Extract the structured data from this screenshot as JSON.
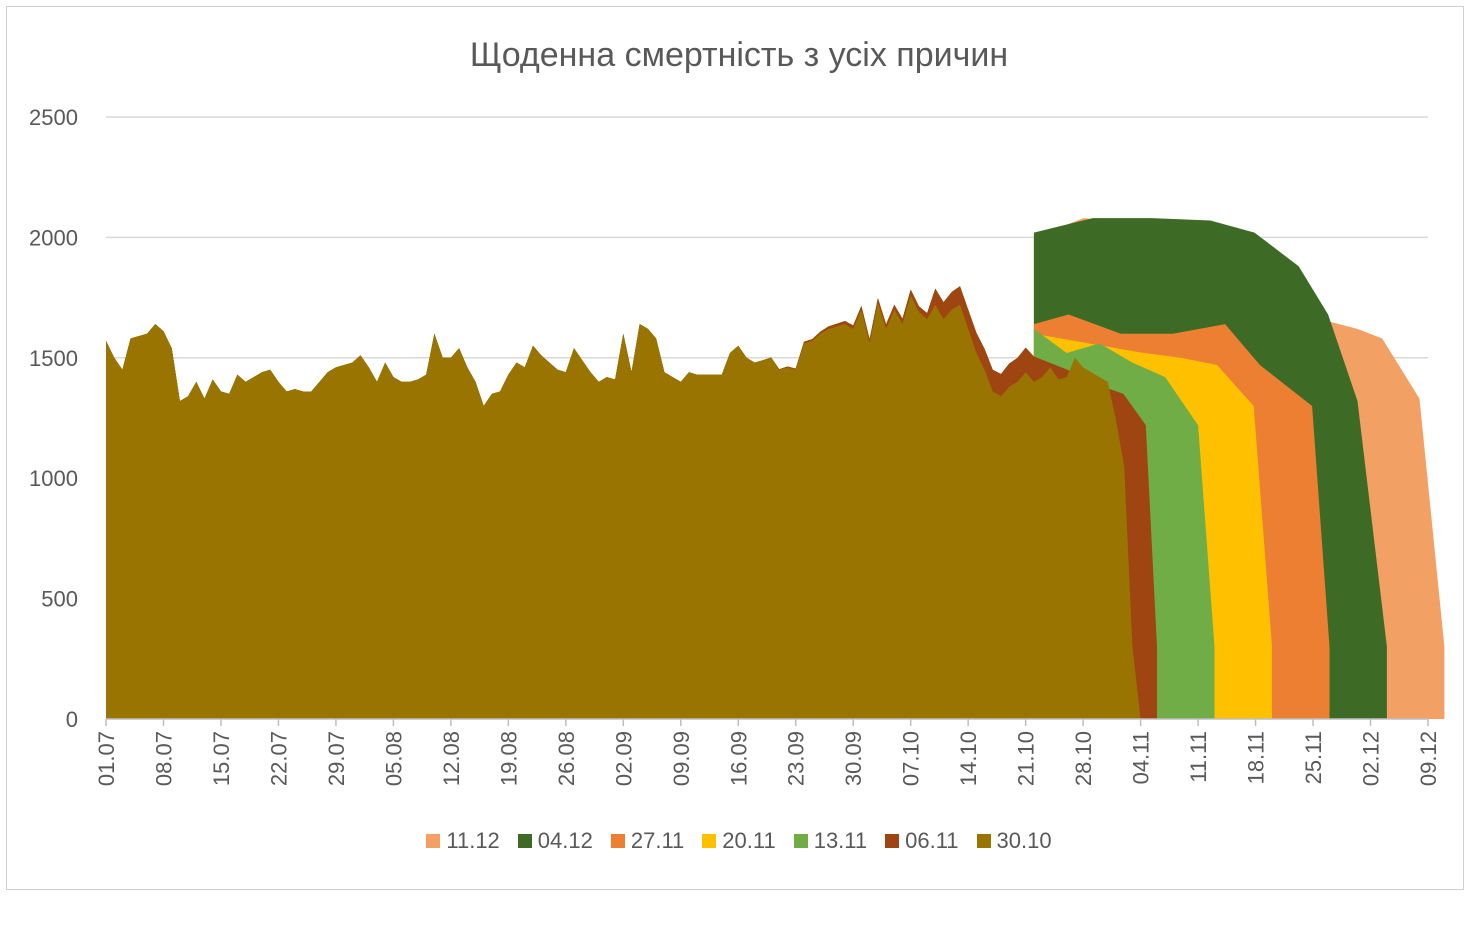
{
  "chart_data": {
    "type": "area",
    "title": "Щоденна смертність з усіх причин",
    "xlabel": "",
    "ylabel": "",
    "ylim": [
      0,
      2500
    ],
    "yticks": [
      0,
      500,
      1000,
      1500,
      2000,
      2500
    ],
    "x_start": "01.07",
    "x_end": "09.12",
    "x_tick_labels": [
      "01.07",
      "08.07",
      "15.07",
      "22.07",
      "29.07",
      "05.08",
      "12.08",
      "19.08",
      "26.08",
      "02.09",
      "09.09",
      "16.09",
      "23.09",
      "30.09",
      "07.10",
      "14.10",
      "21.10",
      "28.10",
      "04.11",
      "11.11",
      "18.11",
      "25.11",
      "02.12",
      "09.12"
    ],
    "grid": true,
    "legend_position": "bottom",
    "series": [
      {
        "name": "11.12",
        "color": "#F2A064",
        "end": "09.12",
        "tail": [
          [
            0,
            2000
          ],
          [
            4,
            2080
          ],
          [
            8,
            2060
          ],
          [
            12,
            2060
          ],
          [
            16,
            1990
          ],
          [
            19,
            1740
          ],
          [
            23,
            1660
          ],
          [
            26,
            1620
          ],
          [
            28,
            1580
          ],
          [
            31,
            1330
          ],
          [
            33,
            300
          ]
        ]
      },
      {
        "name": "04.12",
        "color": "#3D6B26",
        "end": "02.12",
        "tail": [
          [
            0,
            2020
          ],
          [
            4,
            2080
          ],
          [
            8,
            2080
          ],
          [
            12,
            2070
          ],
          [
            15,
            2020
          ],
          [
            18,
            1880
          ],
          [
            20,
            1680
          ],
          [
            22,
            1320
          ],
          [
            24,
            300
          ]
        ]
      },
      {
        "name": "27.11",
        "color": "#EC7F32",
        "end": "25.11",
        "tail": [
          [
            0,
            1640
          ],
          [
            2,
            1680
          ],
          [
            5,
            1600
          ],
          [
            8,
            1600
          ],
          [
            11,
            1640
          ],
          [
            13,
            1470
          ],
          [
            16,
            1300
          ],
          [
            17,
            300
          ]
        ]
      },
      {
        "name": "20.11",
        "color": "#FFC000",
        "end": "18.11",
        "tail": [
          [
            0,
            1600
          ],
          [
            3,
            1560
          ],
          [
            6,
            1520
          ],
          [
            8,
            1500
          ],
          [
            10,
            1470
          ],
          [
            12,
            1300
          ],
          [
            13,
            300
          ]
        ]
      },
      {
        "name": "13.11",
        "color": "#70AD47",
        "end": "11.11",
        "tail": [
          [
            0,
            1620
          ],
          [
            2,
            1520
          ],
          [
            4,
            1560
          ],
          [
            6,
            1480
          ],
          [
            8,
            1420
          ],
          [
            10,
            1220
          ],
          [
            11,
            300
          ]
        ]
      },
      {
        "name": "06.11",
        "color": "#9E4511",
        "end": "04.11",
        "tail": [
          [
            0,
            1500
          ],
          [
            3,
            1450
          ],
          [
            5,
            1400
          ],
          [
            8,
            1350
          ],
          [
            10,
            1220
          ],
          [
            11,
            300
          ]
        ]
      },
      {
        "name": "30.10",
        "color": "#9A7400",
        "end": "28.10",
        "values": [
          1570,
          1500,
          1450,
          1580,
          1590,
          1600,
          1640,
          1610,
          1540,
          1320,
          1340,
          1400,
          1330,
          1410,
          1360,
          1350,
          1430,
          1400,
          1420,
          1440,
          1450,
          1400,
          1360,
          1370,
          1360,
          1360,
          1400,
          1440,
          1460,
          1470,
          1480,
          1510,
          1460,
          1400,
          1480,
          1420,
          1400,
          1400,
          1410,
          1430,
          1600,
          1500,
          1500,
          1540,
          1460,
          1400,
          1300,
          1350,
          1360,
          1430,
          1480,
          1460,
          1550,
          1510,
          1480,
          1450,
          1440,
          1540,
          1490,
          1440,
          1400,
          1420,
          1410,
          1600,
          1440,
          1640,
          1620,
          1580,
          1440,
          1420,
          1400,
          1440,
          1430,
          1430,
          1430,
          1430,
          1520,
          1550,
          1500,
          1480,
          1490,
          1500,
          1450,
          1460,
          1450,
          1560,
          1570,
          1600,
          1620,
          1630,
          1640,
          1620,
          1700,
          1560,
          1730,
          1620,
          1700,
          1640,
          1760,
          1690,
          1660,
          1720,
          1660,
          1700,
          1720,
          1620,
          1520,
          1450,
          1360,
          1340,
          1380,
          1400,
          1440,
          1400,
          1420,
          1460,
          1410,
          1420,
          1500,
          1460,
          1440,
          1420,
          1400,
          1240,
          1050,
          300,
          0
        ]
      }
    ]
  },
  "legend": [
    {
      "label": "11.12",
      "color": "#F2A064"
    },
    {
      "label": "04.12",
      "color": "#3D6B26"
    },
    {
      "label": "27.11",
      "color": "#EC7F32"
    },
    {
      "label": "20.11",
      "color": "#FFC000"
    },
    {
      "label": "13.11",
      "color": "#70AD47"
    },
    {
      "label": "06.11",
      "color": "#9E4511"
    },
    {
      "label": "30.10",
      "color": "#9A7400"
    }
  ]
}
